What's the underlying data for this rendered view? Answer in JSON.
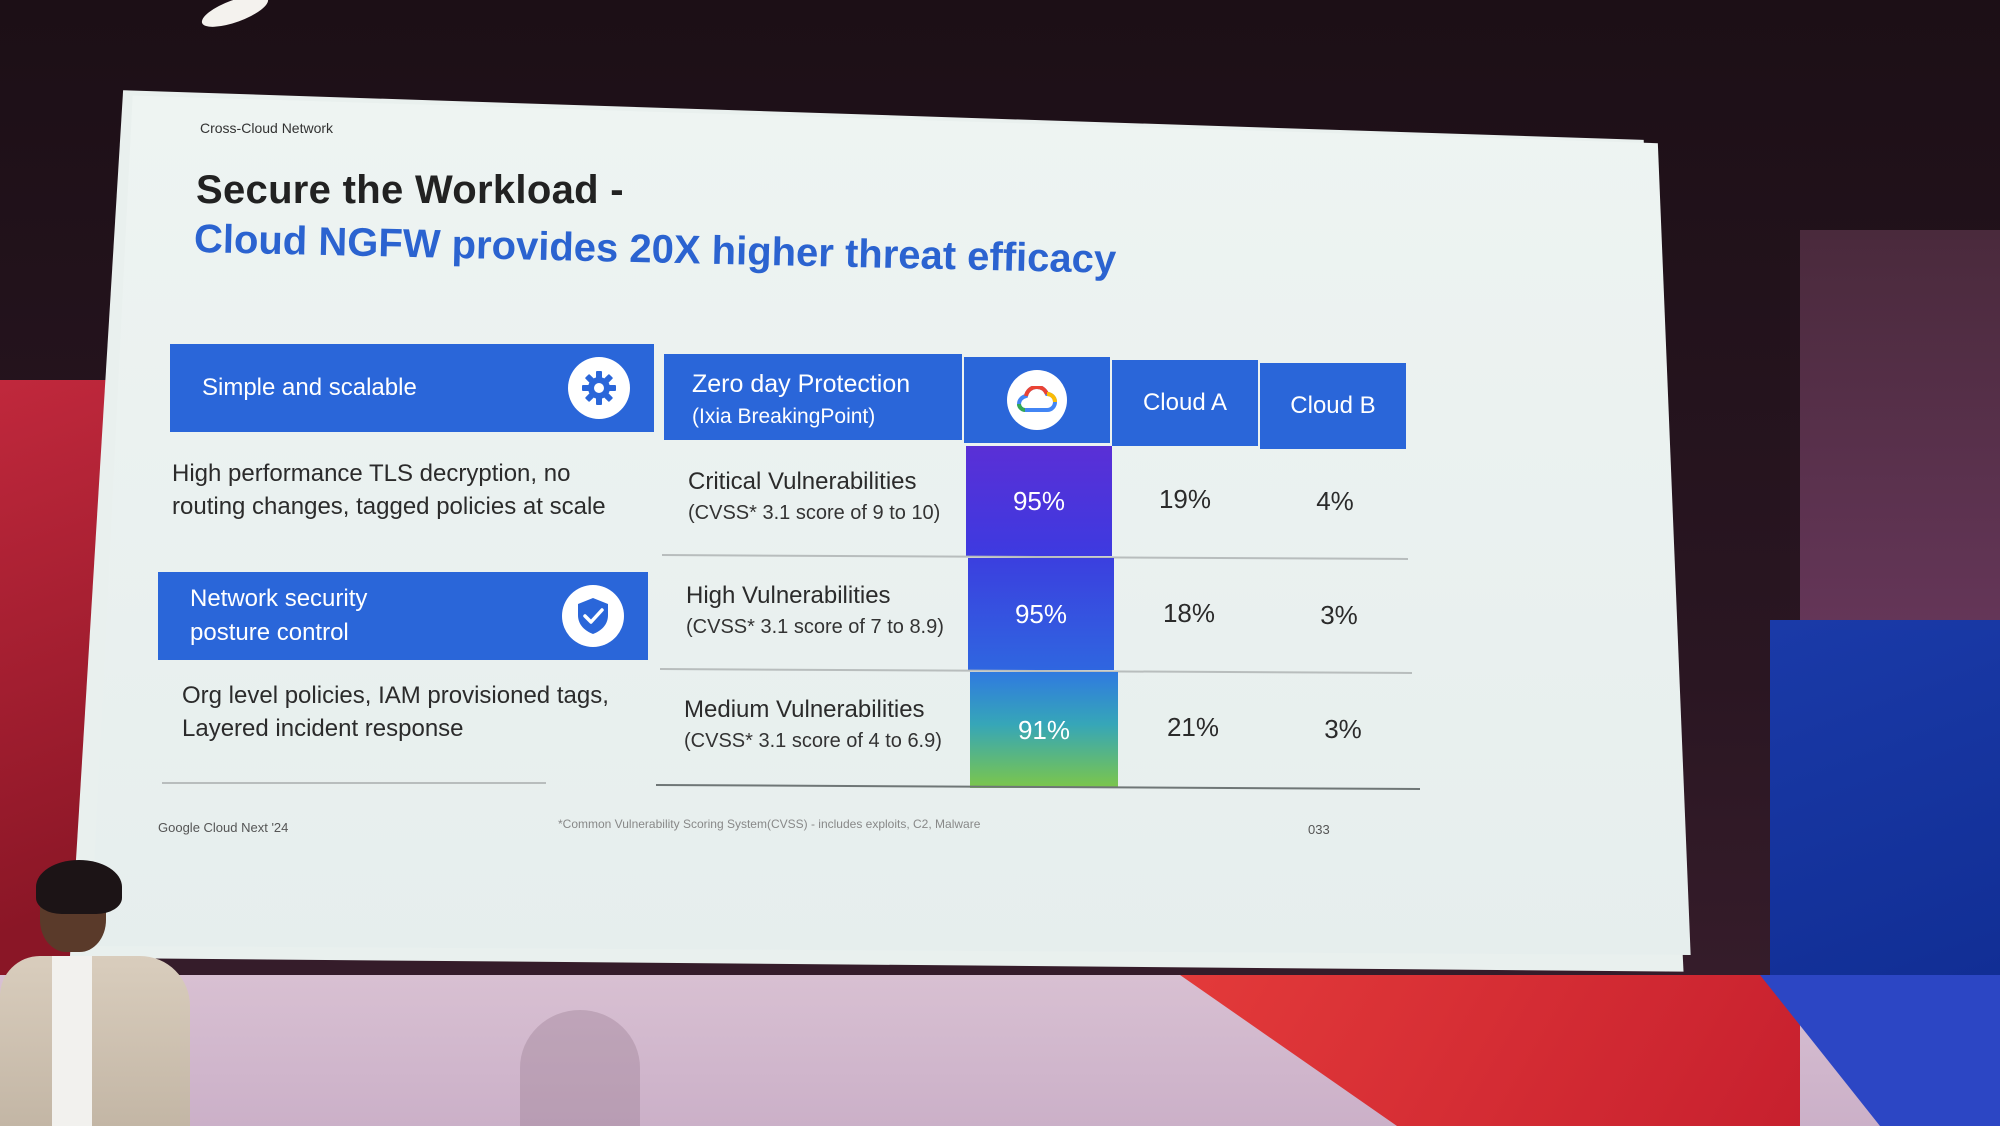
{
  "slide": {
    "section": "Cross-Cloud Network",
    "title_line1": "Secure the Workload -",
    "title_line2": "Cloud NGFW provides 20X higher threat efficacy",
    "features": [
      {
        "label": "Simple and scalable",
        "icon": "gear-icon",
        "description": "High performance TLS decryption, no routing changes, tagged policies at scale"
      },
      {
        "label_line1": "Network security",
        "label_line2": "posture control",
        "icon": "shield-check-icon",
        "description": "Org level policies, IAM provisioned tags, Layered incident response"
      }
    ],
    "table": {
      "header_title": "Zero day Protection",
      "header_subtitle": "(Ixia BreakingPoint)",
      "google_icon": "google-cloud-logo-icon",
      "columns": [
        "Cloud A",
        "Cloud B"
      ],
      "rows": [
        {
          "name": "Critical Vulnerabilities",
          "detail": "(CVSS* 3.1 score of 9 to 10)",
          "google": "95%",
          "cloud_a": "19%",
          "cloud_b": "4%"
        },
        {
          "name": "High Vulnerabilities",
          "detail": "(CVSS* 3.1 score of 7 to 8.9)",
          "google": "95%",
          "cloud_a": "18%",
          "cloud_b": "3%"
        },
        {
          "name": "Medium Vulnerabilities",
          "detail": "(CVSS* 3.1 score of 4 to 6.9)",
          "google": "91%",
          "cloud_a": "21%",
          "cloud_b": "3%"
        }
      ]
    },
    "footer_left": "Google Cloud Next '24",
    "footer_note": "*Common Vulnerability Scoring System(CVSS) - includes exploits, C2, Malware",
    "page_number": "033"
  },
  "colors": {
    "brand_blue": "#2a66d9",
    "title_blue": "#2b63d0",
    "slide_bg": "#eaf1ef"
  }
}
